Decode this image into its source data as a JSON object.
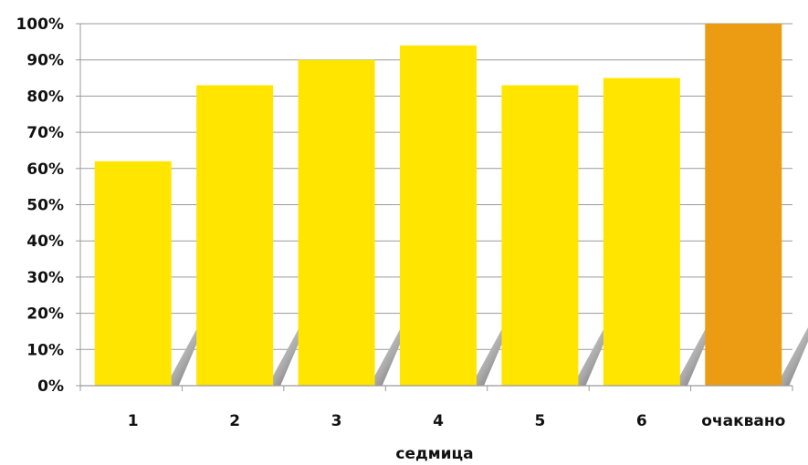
{
  "chart_data": {
    "type": "bar",
    "title": "",
    "xlabel": "седмица",
    "ylabel": "",
    "categories": [
      "1",
      "2",
      "3",
      "4",
      "5",
      "6",
      "очаквано"
    ],
    "values": [
      62,
      83,
      90,
      94,
      83,
      85,
      100
    ],
    "value_unit": "%",
    "ylim": [
      0,
      100
    ],
    "yticks": [
      "0%",
      "10%",
      "20%",
      "30%",
      "40%",
      "50%",
      "60%",
      "70%",
      "80%",
      "90%",
      "100%"
    ],
    "grid": true,
    "legend": "none",
    "colors": {
      "bar": "#FFE500",
      "highlight_bar": "#EC9C12",
      "grid": "#9a9a9a",
      "text": "#111111"
    },
    "highlight_category": "очаквано"
  }
}
